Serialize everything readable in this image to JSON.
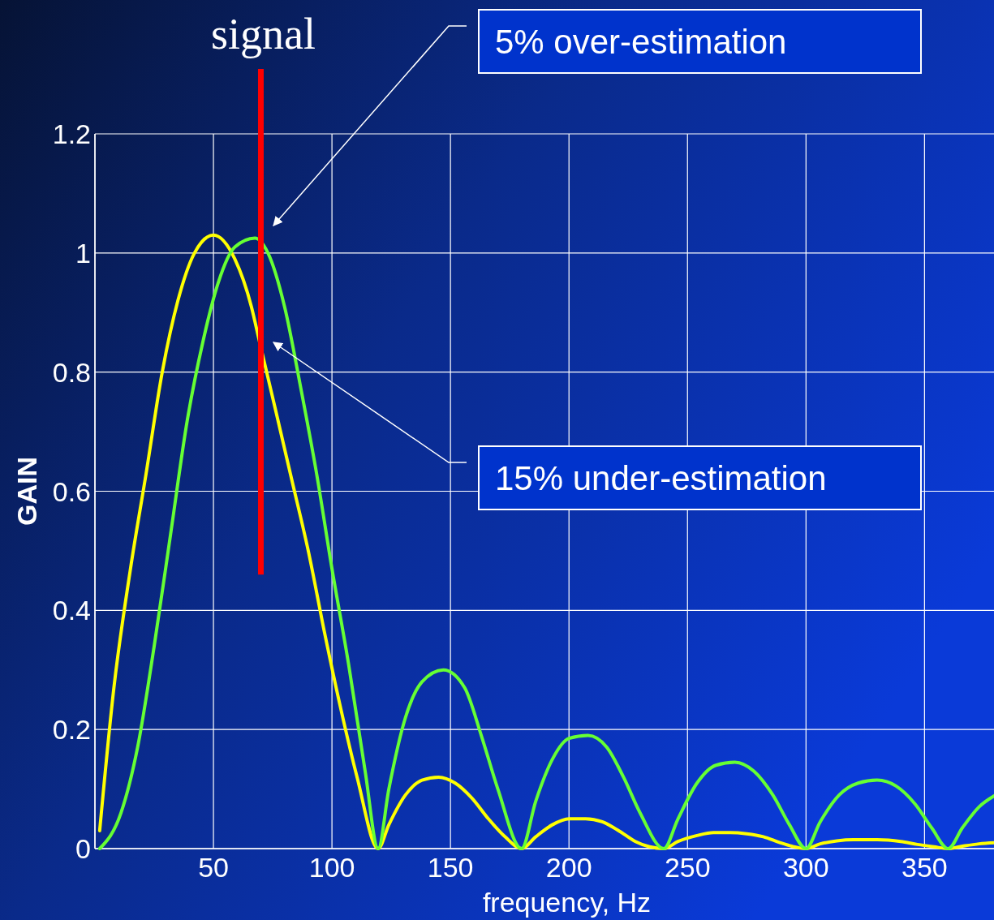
{
  "chart_data": {
    "type": "line",
    "xlabel": "frequency, Hz",
    "ylabel": "GAIN",
    "xlim": [
      0,
      380
    ],
    "ylim": [
      0,
      1.2
    ],
    "xticks": [
      {
        "value": 0,
        "label": null
      },
      50,
      100,
      150,
      200,
      250,
      300,
      350
    ],
    "yticks": [
      0,
      0.2,
      0.4,
      0.6,
      0.8,
      1,
      1.2
    ],
    "grid": true,
    "marker": "none",
    "line_style": "solid",
    "series": [
      {
        "color": "#ffff00",
        "x": [
          2,
          8,
          15,
          21.6,
          28.4,
          35,
          42,
          50,
          59,
          66,
          69.5,
          76,
          83,
          90,
          97,
          104,
          110.6,
          119.5,
          124,
          131,
          138,
          145,
          152,
          159,
          166,
          173,
          180,
          186,
          193,
          200,
          207,
          214,
          221,
          228,
          234,
          240,
          246,
          254,
          261,
          268,
          275,
          282,
          289,
          294,
          300,
          306,
          313,
          320,
          330,
          340,
          347,
          354,
          360,
          366,
          373,
          380
        ],
        "values": [
          0.03,
          0.27,
          0.47,
          0.63,
          0.8,
          0.92,
          1.0,
          1.03,
          0.99,
          0.91,
          0.85,
          0.74,
          0.62,
          0.5,
          0.36,
          0.23,
          0.12,
          0,
          0.04,
          0.09,
          0.115,
          0.12,
          0.11,
          0.085,
          0.05,
          0.02,
          0,
          0.02,
          0.04,
          0.05,
          0.05,
          0.045,
          0.03,
          0.012,
          0.003,
          0,
          0.012,
          0.022,
          0.027,
          0.027,
          0.025,
          0.02,
          0.01,
          0.004,
          0,
          0.008,
          0.013,
          0.015,
          0.015,
          0.012,
          0.007,
          0.003,
          0,
          0.004,
          0.008,
          0.01
        ]
      },
      {
        "color": "#66ff33",
        "x": [
          2,
          11,
          18,
          25,
          32,
          39,
          45.5,
          52,
          59,
          67.5,
          73,
          80,
          87,
          93.5,
          100,
          107,
          114,
          119.5,
          124,
          131,
          138,
          147,
          156,
          163,
          170,
          180,
          186,
          193,
          200,
          208,
          216,
          223,
          230,
          240,
          246,
          254,
          262,
          270,
          278,
          286,
          293,
          300,
          306,
          314,
          322,
          330,
          338,
          346,
          353,
          360,
          366,
          373,
          380
        ],
        "values": [
          0,
          0.06,
          0.17,
          0.34,
          0.53,
          0.72,
          0.85,
          0.95,
          1.01,
          1.025,
          1.0,
          0.91,
          0.77,
          0.63,
          0.47,
          0.31,
          0.13,
          0,
          0.1,
          0.22,
          0.28,
          0.3,
          0.27,
          0.19,
          0.1,
          0,
          0.08,
          0.15,
          0.185,
          0.19,
          0.17,
          0.12,
          0.06,
          0,
          0.05,
          0.11,
          0.14,
          0.145,
          0.13,
          0.09,
          0.04,
          0,
          0.045,
          0.09,
          0.11,
          0.115,
          0.105,
          0.075,
          0.035,
          0,
          0.035,
          0.07,
          0.09
        ]
      }
    ],
    "ref_lines": [
      {
        "axis": "x",
        "value": 70,
        "label": "signal",
        "color": "#ff0000"
      }
    ],
    "annotations": [
      "5% over-estimation",
      "15% under-estimation"
    ]
  }
}
